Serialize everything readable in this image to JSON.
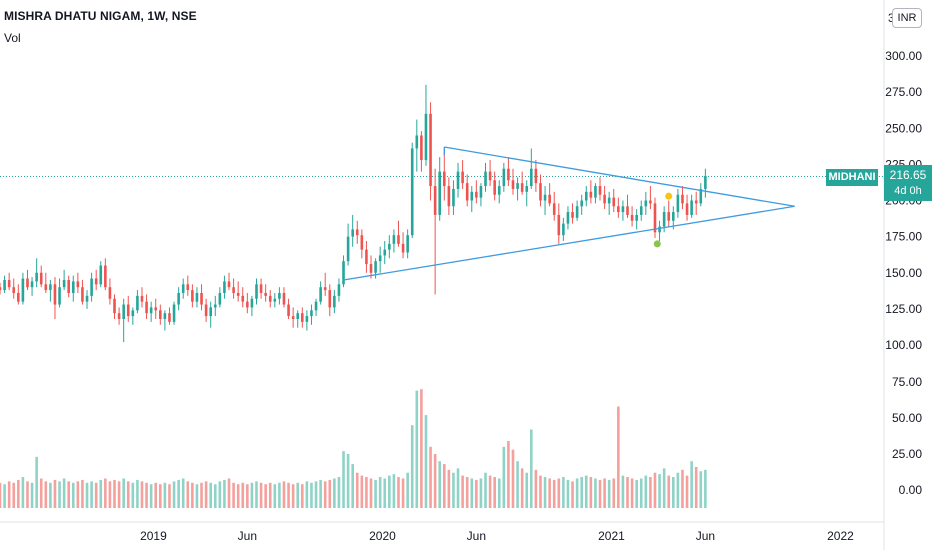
{
  "header": {
    "title": "MISHRA DHATU NIGAM, 1W, NSE",
    "vol_label": "Vol",
    "currency": "INR"
  },
  "last_price": {
    "symbol": "MIDHANI",
    "value": "216.65",
    "countdown": "4d 0h"
  },
  "colors": {
    "up": "#26a69a",
    "down": "#ef5350",
    "vol_up": "#8fd3c7",
    "vol_down": "#f4a09d",
    "trendline": "#3d9be0",
    "dot_yellow": "#f5c518",
    "dot_green": "#8bc34a"
  },
  "chart_data": {
    "type": "candlestick",
    "title": "MISHRA DHATU NIGAM, 1W, NSE",
    "price_axis": {
      "labels": [
        "300.00",
        "275.00",
        "250.00",
        "225.00",
        "200.00",
        "175.00",
        "150.00",
        "125.00",
        "100.00"
      ],
      "range": [
        85,
        310
      ]
    },
    "volume_axis": {
      "labels": [
        "75.00",
        "50.00",
        "25.00",
        "0.00"
      ],
      "range": [
        -12,
        82
      ]
    },
    "x_labels": [
      "2019",
      "Jun",
      "2020",
      "Jun",
      "2021",
      "Jun",
      "2022"
    ],
    "x_label_dates": [
      2019.0,
      2019.41,
      2020.0,
      2020.41,
      2021.0,
      2021.41,
      2022.0
    ],
    "last_price": 216.65,
    "candles": [
      [
        2018.33,
        140,
        143,
        135,
        138,
        5
      ],
      [
        2018.35,
        138,
        148,
        136,
        145,
        4
      ],
      [
        2018.37,
        145,
        150,
        138,
        140,
        6
      ],
      [
        2018.39,
        140,
        146,
        132,
        136,
        5
      ],
      [
        2018.41,
        136,
        142,
        128,
        130,
        7
      ],
      [
        2018.43,
        130,
        150,
        128,
        146,
        9
      ],
      [
        2018.45,
        146,
        152,
        138,
        140,
        6
      ],
      [
        2018.47,
        140,
        147,
        134,
        144,
        5
      ],
      [
        2018.49,
        144,
        160,
        140,
        150,
        23
      ],
      [
        2018.51,
        150,
        155,
        140,
        142,
        8
      ],
      [
        2018.53,
        142,
        150,
        136,
        138,
        6
      ],
      [
        2018.55,
        138,
        145,
        130,
        142,
        5
      ],
      [
        2018.57,
        142,
        147,
        118,
        128,
        7
      ],
      [
        2018.59,
        128,
        146,
        126,
        140,
        6
      ],
      [
        2018.61,
        140,
        152,
        138,
        145,
        8
      ],
      [
        2018.63,
        145,
        148,
        133,
        136,
        6
      ],
      [
        2018.65,
        136,
        148,
        130,
        144,
        5
      ],
      [
        2018.67,
        144,
        150,
        136,
        140,
        6
      ],
      [
        2018.69,
        140,
        145,
        128,
        130,
        7
      ],
      [
        2018.71,
        130,
        138,
        125,
        134,
        5
      ],
      [
        2018.73,
        134,
        150,
        130,
        146,
        6
      ],
      [
        2018.75,
        146,
        152,
        138,
        142,
        5
      ],
      [
        2018.77,
        142,
        158,
        140,
        155,
        7
      ],
      [
        2018.79,
        155,
        160,
        138,
        140,
        8
      ],
      [
        2018.81,
        140,
        146,
        128,
        132,
        6
      ],
      [
        2018.83,
        132,
        135,
        118,
        122,
        7
      ],
      [
        2018.85,
        122,
        126,
        114,
        118,
        6
      ],
      [
        2018.87,
        118,
        132,
        102,
        128,
        8
      ],
      [
        2018.89,
        128,
        134,
        116,
        120,
        6
      ],
      [
        2018.91,
        120,
        126,
        114,
        124,
        5
      ],
      [
        2018.93,
        124,
        138,
        122,
        134,
        7
      ],
      [
        2018.95,
        134,
        140,
        126,
        130,
        6
      ],
      [
        2018.97,
        130,
        135,
        118,
        122,
        5
      ],
      [
        2018.99,
        122,
        130,
        116,
        126,
        4
      ],
      [
        2019.01,
        126,
        132,
        118,
        124,
        5
      ],
      [
        2019.03,
        124,
        128,
        114,
        118,
        4
      ],
      [
        2019.05,
        118,
        124,
        110,
        122,
        5
      ],
      [
        2019.07,
        122,
        126,
        114,
        116,
        4
      ],
      [
        2019.09,
        116,
        130,
        114,
        128,
        6
      ],
      [
        2019.11,
        128,
        140,
        124,
        136,
        7
      ],
      [
        2019.13,
        136,
        146,
        132,
        142,
        8
      ],
      [
        2019.15,
        142,
        148,
        134,
        138,
        6
      ],
      [
        2019.17,
        138,
        142,
        126,
        130,
        5
      ],
      [
        2019.19,
        130,
        140,
        126,
        136,
        4
      ],
      [
        2019.21,
        136,
        142,
        124,
        128,
        5
      ],
      [
        2019.23,
        128,
        132,
        116,
        120,
        6
      ],
      [
        2019.25,
        120,
        130,
        112,
        126,
        5
      ],
      [
        2019.27,
        126,
        134,
        120,
        128,
        4
      ],
      [
        2019.29,
        128,
        140,
        126,
        136,
        6
      ],
      [
        2019.31,
        136,
        148,
        132,
        144,
        7
      ],
      [
        2019.33,
        144,
        150,
        138,
        140,
        8
      ],
      [
        2019.35,
        140,
        146,
        132,
        136,
        5
      ],
      [
        2019.37,
        136,
        144,
        130,
        134,
        4
      ],
      [
        2019.39,
        134,
        140,
        126,
        130,
        5
      ],
      [
        2019.41,
        130,
        136,
        122,
        126,
        4
      ],
      [
        2019.43,
        126,
        134,
        120,
        132,
        5
      ],
      [
        2019.45,
        132,
        146,
        128,
        142,
        6
      ],
      [
        2019.47,
        142,
        146,
        132,
        136,
        5
      ],
      [
        2019.49,
        136,
        142,
        130,
        134,
        4
      ],
      [
        2019.51,
        134,
        138,
        126,
        130,
        5
      ],
      [
        2019.53,
        130,
        136,
        126,
        132,
        4
      ],
      [
        2019.55,
        132,
        140,
        128,
        136,
        5
      ],
      [
        2019.57,
        136,
        140,
        126,
        128,
        6
      ],
      [
        2019.59,
        128,
        132,
        118,
        120,
        5
      ],
      [
        2019.61,
        120,
        126,
        112,
        118,
        4
      ],
      [
        2019.63,
        118,
        124,
        112,
        122,
        5
      ],
      [
        2019.65,
        122,
        126,
        112,
        116,
        4
      ],
      [
        2019.67,
        116,
        124,
        110,
        120,
        6
      ],
      [
        2019.69,
        120,
        128,
        114,
        124,
        5
      ],
      [
        2019.71,
        124,
        132,
        120,
        130,
        6
      ],
      [
        2019.73,
        130,
        144,
        128,
        140,
        7
      ],
      [
        2019.75,
        140,
        150,
        134,
        138,
        6
      ],
      [
        2019.77,
        138,
        142,
        120,
        126,
        7
      ],
      [
        2019.79,
        126,
        138,
        122,
        134,
        8
      ],
      [
        2019.81,
        134,
        146,
        130,
        142,
        9
      ],
      [
        2019.83,
        142,
        162,
        140,
        158,
        27
      ],
      [
        2019.85,
        158,
        184,
        155,
        175,
        25
      ],
      [
        2019.87,
        175,
        190,
        168,
        180,
        18
      ],
      [
        2019.89,
        180,
        186,
        170,
        176,
        12
      ],
      [
        2019.91,
        176,
        180,
        160,
        166,
        10
      ],
      [
        2019.93,
        166,
        172,
        150,
        156,
        9
      ],
      [
        2019.95,
        156,
        162,
        146,
        150,
        8
      ],
      [
        2019.97,
        150,
        160,
        146,
        158,
        7
      ],
      [
        2019.99,
        158,
        168,
        150,
        162,
        9
      ],
      [
        2020.01,
        162,
        172,
        156,
        166,
        8
      ],
      [
        2020.03,
        166,
        176,
        160,
        170,
        10
      ],
      [
        2020.05,
        170,
        180,
        164,
        176,
        11
      ],
      [
        2020.07,
        176,
        186,
        168,
        170,
        9
      ],
      [
        2020.09,
        170,
        178,
        160,
        164,
        8
      ],
      [
        2020.11,
        164,
        180,
        160,
        176,
        12
      ],
      [
        2020.13,
        176,
        240,
        174,
        236,
        45
      ],
      [
        2020.15,
        236,
        256,
        220,
        245,
        69
      ],
      [
        2020.17,
        245,
        248,
        220,
        228,
        70
      ],
      [
        2020.19,
        228,
        280,
        224,
        260,
        52
      ],
      [
        2020.21,
        260,
        268,
        200,
        210,
        30
      ],
      [
        2020.23,
        210,
        222,
        135,
        190,
        25
      ],
      [
        2020.25,
        190,
        230,
        186,
        220,
        20
      ],
      [
        2020.27,
        220,
        236,
        200,
        210,
        18
      ],
      [
        2020.29,
        210,
        216,
        190,
        196,
        14
      ],
      [
        2020.31,
        196,
        214,
        190,
        208,
        12
      ],
      [
        2020.33,
        208,
        226,
        202,
        220,
        15
      ],
      [
        2020.35,
        220,
        228,
        208,
        212,
        10
      ],
      [
        2020.37,
        212,
        218,
        196,
        200,
        9
      ],
      [
        2020.39,
        200,
        210,
        192,
        206,
        8
      ],
      [
        2020.41,
        206,
        214,
        198,
        202,
        7
      ],
      [
        2020.43,
        202,
        212,
        196,
        210,
        8
      ],
      [
        2020.45,
        210,
        226,
        206,
        220,
        12
      ],
      [
        2020.47,
        220,
        228,
        210,
        214,
        10
      ],
      [
        2020.49,
        214,
        220,
        200,
        204,
        9
      ],
      [
        2020.51,
        204,
        214,
        198,
        210,
        8
      ],
      [
        2020.53,
        210,
        226,
        206,
        222,
        30
      ],
      [
        2020.55,
        222,
        230,
        210,
        214,
        34
      ],
      [
        2020.57,
        214,
        222,
        204,
        208,
        28
      ],
      [
        2020.59,
        208,
        216,
        200,
        212,
        20
      ],
      [
        2020.61,
        212,
        220,
        204,
        206,
        15
      ],
      [
        2020.63,
        206,
        214,
        196,
        210,
        12
      ],
      [
        2020.65,
        210,
        236,
        208,
        222,
        42
      ],
      [
        2020.67,
        222,
        228,
        206,
        212,
        14
      ],
      [
        2020.69,
        212,
        218,
        196,
        200,
        10
      ],
      [
        2020.71,
        200,
        210,
        190,
        204,
        9
      ],
      [
        2020.73,
        204,
        212,
        196,
        198,
        8
      ],
      [
        2020.75,
        198,
        206,
        186,
        190,
        7
      ],
      [
        2020.77,
        190,
        198,
        170,
        176,
        8
      ],
      [
        2020.79,
        176,
        188,
        172,
        184,
        9
      ],
      [
        2020.81,
        184,
        196,
        180,
        192,
        7
      ],
      [
        2020.83,
        192,
        198,
        184,
        188,
        6
      ],
      [
        2020.85,
        188,
        200,
        186,
        196,
        8
      ],
      [
        2020.87,
        196,
        204,
        190,
        200,
        9
      ],
      [
        2020.89,
        200,
        210,
        196,
        206,
        10
      ],
      [
        2020.91,
        206,
        214,
        198,
        202,
        9
      ],
      [
        2020.93,
        202,
        212,
        198,
        210,
        8
      ],
      [
        2020.95,
        210,
        216,
        200,
        204,
        7
      ],
      [
        2020.97,
        204,
        210,
        194,
        198,
        8
      ],
      [
        2020.99,
        198,
        206,
        190,
        202,
        7
      ],
      [
        2021.01,
        202,
        208,
        192,
        196,
        8
      ],
      [
        2021.03,
        196,
        202,
        188,
        192,
        58
      ],
      [
        2021.05,
        192,
        200,
        186,
        196,
        10
      ],
      [
        2021.07,
        196,
        204,
        188,
        190,
        9
      ],
      [
        2021.09,
        190,
        196,
        182,
        186,
        8
      ],
      [
        2021.11,
        186,
        194,
        180,
        190,
        7
      ],
      [
        2021.13,
        190,
        200,
        186,
        196,
        8
      ],
      [
        2021.15,
        196,
        206,
        190,
        200,
        10
      ],
      [
        2021.17,
        200,
        210,
        194,
        198,
        9
      ],
      [
        2021.19,
        198,
        202,
        174,
        178,
        12
      ],
      [
        2021.21,
        178,
        186,
        172,
        182,
        11
      ],
      [
        2021.23,
        182,
        196,
        178,
        192,
        15
      ],
      [
        2021.25,
        192,
        200,
        182,
        186,
        10
      ],
      [
        2021.27,
        186,
        196,
        180,
        192,
        9
      ],
      [
        2021.29,
        192,
        208,
        188,
        204,
        12
      ],
      [
        2021.31,
        204,
        210,
        194,
        198,
        14
      ],
      [
        2021.33,
        198,
        204,
        186,
        190,
        10
      ],
      [
        2021.35,
        190,
        204,
        188,
        200,
        20
      ],
      [
        2021.37,
        200,
        206,
        190,
        198,
        16
      ],
      [
        2021.39,
        198,
        212,
        196,
        208,
        13
      ],
      [
        2021.41,
        208,
        222,
        202,
        217,
        14
      ]
    ],
    "trendlines": [
      {
        "name": "upper",
        "from": [
          2020.27,
          237
        ],
        "to": [
          2021.8,
          196
        ]
      },
      {
        "name": "lower",
        "from": [
          2019.83,
          145
        ],
        "to": [
          2021.8,
          196
        ]
      }
    ],
    "markers": [
      {
        "date": 2021.25,
        "price": 203,
        "color": "yellow"
      },
      {
        "date": 2021.2,
        "price": 170,
        "color": "green"
      }
    ]
  }
}
